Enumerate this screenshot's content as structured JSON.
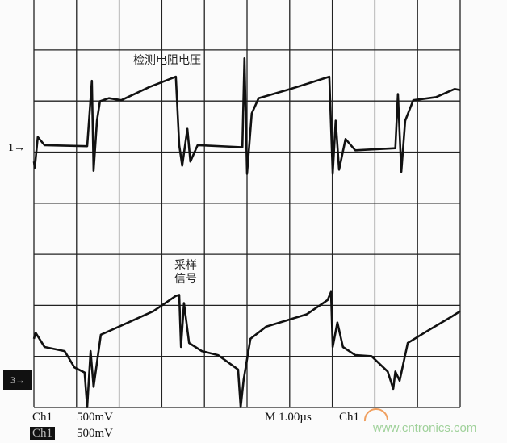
{
  "chart_data": {
    "type": "line",
    "title": "",
    "xlabel": "",
    "ylabel": "",
    "x_unit": "µs",
    "xlim": [
      0,
      10
    ],
    "grid": true,
    "grid_divisions": {
      "x": 10,
      "y": 8
    },
    "series": [
      {
        "name": "检测电阻电压",
        "channel_marker": "1",
        "y_unit": "V",
        "points": [
          [
            0,
            -0.12
          ],
          [
            0.02,
            -0.18
          ],
          [
            0.09,
            0.12
          ],
          [
            0.25,
            0.04
          ],
          [
            1.25,
            0.03
          ],
          [
            1.36,
            0.67
          ],
          [
            1.4,
            -0.21
          ],
          [
            1.48,
            0.28
          ],
          [
            1.55,
            0.47
          ],
          [
            1.76,
            0.5
          ],
          [
            2.05,
            0.48
          ],
          [
            2.71,
            0.61
          ],
          [
            3.33,
            0.71
          ],
          [
            3.41,
            0.04
          ],
          [
            3.48,
            -0.16
          ],
          [
            3.6,
            0.2
          ],
          [
            3.67,
            -0.12
          ],
          [
            3.84,
            0.04
          ],
          [
            4.89,
            0.02
          ],
          [
            4.94,
            0.89
          ],
          [
            5.0,
            -0.24
          ],
          [
            5.11,
            0.35
          ],
          [
            5.27,
            0.5
          ],
          [
            6.02,
            0.59
          ],
          [
            6.93,
            0.71
          ],
          [
            7.01,
            -0.24
          ],
          [
            7.08,
            0.28
          ],
          [
            7.16,
            -0.2
          ],
          [
            7.31,
            0.1
          ],
          [
            7.54,
            -0.01
          ],
          [
            8.48,
            0.01
          ],
          [
            8.54,
            0.54
          ],
          [
            8.62,
            -0.22
          ],
          [
            8.71,
            0.28
          ],
          [
            8.9,
            0.48
          ],
          [
            9.43,
            0.51
          ],
          [
            9.87,
            0.59
          ],
          [
            10,
            0.58
          ]
        ]
      },
      {
        "name": "采样信号",
        "channel_marker": "3",
        "y_unit": "V",
        "points": [
          [
            0,
            0.38
          ],
          [
            0.04,
            0.44
          ],
          [
            0.25,
            0.3
          ],
          [
            0.72,
            0.26
          ],
          [
            0.95,
            0.1
          ],
          [
            1.19,
            0.05
          ],
          [
            1.25,
            -0.29
          ],
          [
            1.33,
            0.26
          ],
          [
            1.4,
            -0.09
          ],
          [
            1.57,
            0.42
          ],
          [
            2.0,
            0.5
          ],
          [
            2.8,
            0.65
          ],
          [
            3.33,
            0.8
          ],
          [
            3.41,
            0.81
          ],
          [
            3.45,
            0.3
          ],
          [
            3.52,
            0.73
          ],
          [
            3.64,
            0.34
          ],
          [
            3.94,
            0.26
          ],
          [
            4.32,
            0.22
          ],
          [
            4.79,
            0.08
          ],
          [
            4.85,
            -0.29
          ],
          [
            4.92,
            -0.02
          ],
          [
            5.08,
            0.38
          ],
          [
            5.45,
            0.5
          ],
          [
            6.4,
            0.62
          ],
          [
            6.89,
            0.76
          ],
          [
            6.97,
            0.84
          ],
          [
            7.01,
            0.3
          ],
          [
            7.12,
            0.54
          ],
          [
            7.25,
            0.3
          ],
          [
            7.54,
            0.22
          ],
          [
            7.92,
            0.21
          ],
          [
            8.3,
            0.06
          ],
          [
            8.43,
            -0.11
          ],
          [
            8.48,
            0.06
          ],
          [
            8.58,
            -0.03
          ],
          [
            8.77,
            0.34
          ],
          [
            9.24,
            0.46
          ],
          [
            9.81,
            0.6
          ],
          [
            10,
            0.65
          ]
        ]
      }
    ],
    "annotations": {
      "upper": "检测电阻电压",
      "lower_line1": "采样",
      "lower_line2": "信号"
    }
  },
  "markers": {
    "ch1": "1→",
    "ch3": "3→"
  },
  "footer": {
    "ch1_label": "Ch1",
    "ch1_scale": "500mV",
    "ch1b_label": "Ch1",
    "ch1b_scale": "500mV",
    "timebase": "M  1.00µs",
    "trigger_source": "Ch1"
  },
  "watermark": "www.cntronics.com",
  "colors": {
    "trace": "#111111",
    "grid": "#222222",
    "watermark": "#9fd19a",
    "logo": "#f0a060"
  }
}
